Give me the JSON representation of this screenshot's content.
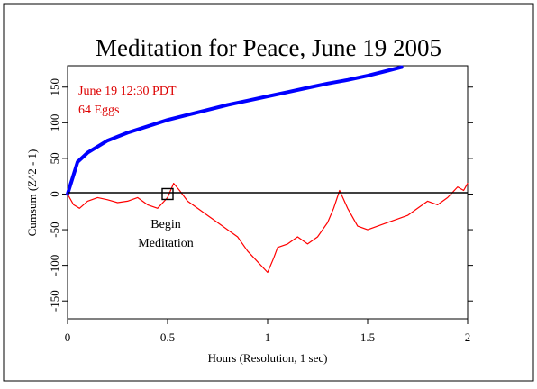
{
  "chart_data": {
    "type": "line",
    "title": "Meditation for Peace, June 19 2005",
    "xlabel": "Hours (Resolution, 1 sec)",
    "ylabel": "Cumsum (Z^2 - 1)",
    "xlim": [
      0,
      2
    ],
    "ylim": [
      -175,
      180
    ],
    "x_ticks": [
      0,
      0.5,
      1,
      1.5,
      2
    ],
    "x_tick_labels": [
      "0",
      "0.5",
      "1",
      "1.5",
      "2"
    ],
    "y_ticks": [
      -150,
      -100,
      -50,
      0,
      50,
      100,
      150
    ],
    "y_tick_labels": [
      "-150",
      "-100",
      "-50",
      "0",
      "50",
      "100",
      "150"
    ],
    "grid": false,
    "legend": "none",
    "annotations": [
      {
        "text": "June 19 12:30 PDT",
        "color": "#dd0000"
      },
      {
        "text": "64 Eggs",
        "color": "#dd0000"
      },
      {
        "text": "Begin",
        "color": "#000000"
      },
      {
        "text": "Meditation",
        "color": "#000000"
      }
    ],
    "series": [
      {
        "color": "#0000ff",
        "style": "thick",
        "x": [
          0,
          0.05,
          0.1,
          0.2,
          0.3,
          0.4,
          0.5,
          0.6,
          0.7,
          0.8,
          0.9,
          1.0,
          1.1,
          1.2,
          1.3,
          1.4,
          1.5,
          1.6,
          1.67
        ],
        "y": [
          0,
          45,
          58,
          75,
          86,
          95,
          104,
          111,
          118,
          125,
          131,
          137,
          143,
          149,
          155,
          160,
          166,
          173,
          178
        ]
      },
      {
        "color": "#ff0000",
        "style": "thin",
        "x": [
          0,
          0.03,
          0.06,
          0.1,
          0.15,
          0.2,
          0.25,
          0.3,
          0.35,
          0.4,
          0.45,
          0.5,
          0.53,
          0.56,
          0.6,
          0.65,
          0.7,
          0.75,
          0.8,
          0.85,
          0.9,
          0.95,
          1.0,
          1.03,
          1.05,
          1.1,
          1.15,
          1.2,
          1.25,
          1.3,
          1.33,
          1.36,
          1.4,
          1.45,
          1.5,
          1.55,
          1.6,
          1.65,
          1.7,
          1.75,
          1.8,
          1.85,
          1.9,
          1.95,
          1.98,
          2.0
        ],
        "y": [
          0,
          -15,
          -20,
          -10,
          -5,
          -8,
          -12,
          -10,
          -5,
          -15,
          -20,
          -5,
          15,
          5,
          -10,
          -20,
          -30,
          -40,
          -50,
          -60,
          -80,
          -95,
          -110,
          -90,
          -75,
          -70,
          -60,
          -70,
          -60,
          -40,
          -20,
          5,
          -20,
          -45,
          -50,
          -45,
          -40,
          -35,
          -30,
          -20,
          -10,
          -15,
          -5,
          10,
          5,
          15
        ]
      }
    ],
    "markers": [
      {
        "type": "square",
        "x": 0.5,
        "y": 0
      }
    ]
  }
}
